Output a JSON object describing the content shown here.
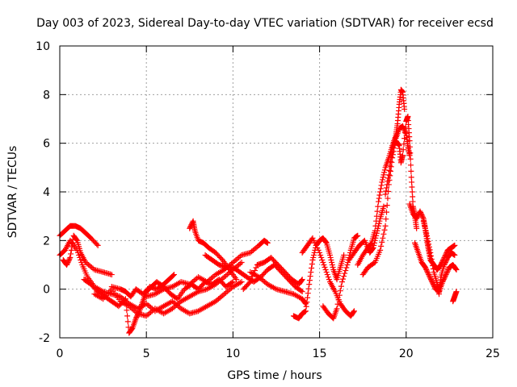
{
  "chart_data": {
    "type": "scatter",
    "title": "Day 003 of 2023, Sidereal Day-to-day VTEC variation (SDTVAR) for receiver ecsd",
    "xlabel": "GPS time / hours",
    "ylabel": "SDTVAR / TECUs",
    "xlim": [
      0,
      25
    ],
    "ylim": [
      -2,
      10
    ],
    "xticks": [
      0,
      5,
      10,
      15,
      20,
      25
    ],
    "yticks": [
      -2,
      0,
      2,
      4,
      6,
      8,
      10
    ],
    "grid": true,
    "marker": "+",
    "series": [
      {
        "name": "SDTVAR",
        "color": "#ff0000",
        "points": [
          [
            0.0,
            1.4
          ],
          [
            0.3,
            1.6
          ],
          [
            0.6,
            2.0
          ],
          [
            1.0,
            1.6
          ],
          [
            1.3,
            1.0
          ],
          [
            1.6,
            0.5
          ],
          [
            2.0,
            0.1
          ],
          [
            2.5,
            -0.1
          ],
          [
            3.0,
            -0.2
          ],
          [
            3.5,
            -0.3
          ],
          [
            4.0,
            -0.6
          ],
          [
            4.5,
            -0.8
          ],
          [
            5.0,
            -0.6
          ],
          [
            5.5,
            -0.9
          ],
          [
            6.0,
            -0.7
          ],
          [
            6.5,
            -0.5
          ],
          [
            7.0,
            -0.8
          ],
          [
            7.5,
            -1.0
          ],
          [
            8.0,
            -0.9
          ],
          [
            8.5,
            -0.7
          ],
          [
            9.0,
            -0.5
          ],
          [
            9.5,
            -0.2
          ],
          [
            10.0,
            0.1
          ],
          [
            10.5,
            0.3
          ],
          [
            0.0,
            2.2
          ],
          [
            0.3,
            2.4
          ],
          [
            0.6,
            2.6
          ],
          [
            0.9,
            2.6
          ],
          [
            1.2,
            2.5
          ],
          [
            1.5,
            2.3
          ],
          [
            1.8,
            2.1
          ],
          [
            2.2,
            1.8
          ],
          [
            0.2,
            1.2
          ],
          [
            0.4,
            1.0
          ],
          [
            0.6,
            1.3
          ],
          [
            0.8,
            2.2
          ],
          [
            1.0,
            2.0
          ],
          [
            1.2,
            1.5
          ],
          [
            1.5,
            1.1
          ],
          [
            2.0,
            0.8
          ],
          [
            2.5,
            0.7
          ],
          [
            3.0,
            0.6
          ],
          [
            3.0,
            0.1
          ],
          [
            3.5,
            0.0
          ],
          [
            3.8,
            -0.1
          ],
          [
            4.1,
            -0.3
          ],
          [
            4.4,
            0.0
          ],
          [
            4.8,
            -0.2
          ],
          [
            5.2,
            0.1
          ],
          [
            5.6,
            0.0
          ],
          [
            6.0,
            0.2
          ],
          [
            6.3,
            0.4
          ],
          [
            6.6,
            0.6
          ],
          [
            1.4,
            0.4
          ],
          [
            1.8,
            0.2
          ],
          [
            2.2,
            -0.1
          ],
          [
            2.6,
            -0.3
          ],
          [
            3.0,
            -0.5
          ],
          [
            3.4,
            -0.7
          ],
          [
            3.8,
            -0.4
          ],
          [
            4.0,
            -1.8
          ],
          [
            4.2,
            -1.6
          ],
          [
            4.4,
            -1.2
          ],
          [
            4.6,
            -0.9
          ],
          [
            4.8,
            -0.5
          ],
          [
            5.0,
            -0.1
          ],
          [
            5.3,
            0.1
          ],
          [
            5.6,
            0.3
          ],
          [
            6.0,
            0.1
          ],
          [
            6.4,
            -0.2
          ],
          [
            6.8,
            -0.4
          ],
          [
            7.2,
            0.0
          ],
          [
            7.6,
            0.2
          ],
          [
            8.0,
            0.0
          ],
          [
            8.4,
            0.3
          ],
          [
            8.8,
            0.2
          ],
          [
            9.2,
            0.4
          ],
          [
            9.6,
            0.1
          ],
          [
            10.0,
            0.3
          ],
          [
            2.0,
            -0.2
          ],
          [
            2.5,
            -0.4
          ],
          [
            3.0,
            0.0
          ],
          [
            3.5,
            -0.5
          ],
          [
            4.0,
            -0.7
          ],
          [
            4.5,
            -1.0
          ],
          [
            5.0,
            -1.1
          ],
          [
            5.5,
            -0.8
          ],
          [
            6.0,
            -1.0
          ],
          [
            6.5,
            -0.8
          ],
          [
            7.0,
            -0.5
          ],
          [
            7.5,
            -0.3
          ],
          [
            8.0,
            -0.1
          ],
          [
            8.5,
            0.0
          ],
          [
            9.0,
            0.2
          ],
          [
            9.5,
            0.5
          ],
          [
            10.0,
            0.8
          ],
          [
            10.5,
            1.1
          ],
          [
            5.0,
            -0.3
          ],
          [
            5.5,
            -0.2
          ],
          [
            6.0,
            0.0
          ],
          [
            6.5,
            0.1
          ],
          [
            7.0,
            0.3
          ],
          [
            7.5,
            0.2
          ],
          [
            8.0,
            0.5
          ],
          [
            8.5,
            0.3
          ],
          [
            9.0,
            0.6
          ],
          [
            9.5,
            0.8
          ],
          [
            10.0,
            1.1
          ],
          [
            10.5,
            1.4
          ],
          [
            11.0,
            1.5
          ],
          [
            11.5,
            1.8
          ],
          [
            11.8,
            2.0
          ],
          [
            12.0,
            1.9
          ],
          [
            7.5,
            2.5
          ],
          [
            7.7,
            2.8
          ],
          [
            7.8,
            2.4
          ],
          [
            8.0,
            2.0
          ],
          [
            8.3,
            1.9
          ],
          [
            8.6,
            1.7
          ],
          [
            9.0,
            1.5
          ],
          [
            9.4,
            1.2
          ],
          [
            9.8,
            0.8
          ],
          [
            10.2,
            0.4
          ],
          [
            8.4,
            1.4
          ],
          [
            8.8,
            1.2
          ],
          [
            9.2,
            1.0
          ],
          [
            9.6,
            0.9
          ],
          [
            10.0,
            0.9
          ],
          [
            10.4,
            0.7
          ],
          [
            10.8,
            0.5
          ],
          [
            11.2,
            0.3
          ],
          [
            11.6,
            0.5
          ],
          [
            12.0,
            0.8
          ],
          [
            12.4,
            1.0
          ],
          [
            12.8,
            0.7
          ],
          [
            13.2,
            0.4
          ],
          [
            13.6,
            0.1
          ],
          [
            14.0,
            -0.1
          ],
          [
            10.6,
            0.0
          ],
          [
            11.0,
            0.3
          ],
          [
            11.4,
            1.0
          ],
          [
            11.8,
            1.1
          ],
          [
            12.2,
            1.3
          ],
          [
            12.6,
            1.0
          ],
          [
            13.0,
            0.7
          ],
          [
            13.4,
            0.4
          ],
          [
            13.8,
            0.2
          ],
          [
            14.0,
            0.4
          ],
          [
            11.0,
            0.7
          ],
          [
            11.5,
            0.5
          ],
          [
            12.0,
            0.2
          ],
          [
            12.5,
            0.0
          ],
          [
            13.0,
            -0.1
          ],
          [
            13.5,
            -0.2
          ],
          [
            14.0,
            -0.4
          ],
          [
            14.2,
            -0.6
          ],
          [
            13.5,
            -1.1
          ],
          [
            13.8,
            -1.2
          ],
          [
            14.0,
            -1.0
          ],
          [
            14.2,
            -0.9
          ],
          [
            14.4,
            0.2
          ],
          [
            14.6,
            1.2
          ],
          [
            14.8,
            1.8
          ],
          [
            15.0,
            2.0
          ],
          [
            15.2,
            2.1
          ],
          [
            15.4,
            1.9
          ],
          [
            15.6,
            1.4
          ],
          [
            15.8,
            0.8
          ],
          [
            16.0,
            0.4
          ],
          [
            16.2,
            0.9
          ],
          [
            16.4,
            1.4
          ],
          [
            14.0,
            1.5
          ],
          [
            14.3,
            1.8
          ],
          [
            14.6,
            2.1
          ],
          [
            15.0,
            1.5
          ],
          [
            15.3,
            0.9
          ],
          [
            15.6,
            0.3
          ],
          [
            15.9,
            -0.1
          ],
          [
            16.2,
            -0.6
          ],
          [
            16.5,
            -0.9
          ],
          [
            16.8,
            -1.1
          ],
          [
            17.0,
            -0.9
          ],
          [
            15.2,
            -0.7
          ],
          [
            15.5,
            -1.0
          ],
          [
            15.8,
            -1.2
          ],
          [
            16.0,
            -0.8
          ],
          [
            16.3,
            0.3
          ],
          [
            16.6,
            1.0
          ],
          [
            16.8,
            1.6
          ],
          [
            17.0,
            2.1
          ],
          [
            17.2,
            2.2
          ],
          [
            16.7,
            1.2
          ],
          [
            17.0,
            1.5
          ],
          [
            17.3,
            1.8
          ],
          [
            17.6,
            2.0
          ],
          [
            17.9,
            1.5
          ],
          [
            18.1,
            1.7
          ],
          [
            18.3,
            2.3
          ],
          [
            18.5,
            2.9
          ],
          [
            18.7,
            3.4
          ],
          [
            17.2,
            1.0
          ],
          [
            17.5,
            1.4
          ],
          [
            17.8,
            1.7
          ],
          [
            18.0,
            1.9
          ],
          [
            18.2,
            2.4
          ],
          [
            18.4,
            3.6
          ],
          [
            18.6,
            4.4
          ],
          [
            18.8,
            5.0
          ],
          [
            19.0,
            5.4
          ],
          [
            19.2,
            5.9
          ],
          [
            19.4,
            6.3
          ],
          [
            19.5,
            6.8
          ],
          [
            19.6,
            7.6
          ],
          [
            19.7,
            8.2
          ],
          [
            19.8,
            8.1
          ],
          [
            19.9,
            7.4
          ],
          [
            17.5,
            0.6
          ],
          [
            17.8,
            0.9
          ],
          [
            18.2,
            1.1
          ],
          [
            18.5,
            1.6
          ],
          [
            18.8,
            2.6
          ],
          [
            19.0,
            4.3
          ],
          [
            19.2,
            5.4
          ],
          [
            19.4,
            6.2
          ],
          [
            19.6,
            6.6
          ],
          [
            19.8,
            6.7
          ],
          [
            20.0,
            6.4
          ],
          [
            20.1,
            5.9
          ],
          [
            20.2,
            5.5
          ],
          [
            18.8,
            3.9
          ],
          [
            19.0,
            4.7
          ],
          [
            19.2,
            5.8
          ],
          [
            19.4,
            6.1
          ],
          [
            19.6,
            5.9
          ],
          [
            19.7,
            5.2
          ],
          [
            19.8,
            5.5
          ],
          [
            20.0,
            6.9
          ],
          [
            20.1,
            7.1
          ],
          [
            20.2,
            6.1
          ],
          [
            20.3,
            4.6
          ],
          [
            20.4,
            3.4
          ],
          [
            20.5,
            3.0
          ],
          [
            20.6,
            2.5
          ],
          [
            20.2,
            3.5
          ],
          [
            20.4,
            3.1
          ],
          [
            20.6,
            2.9
          ],
          [
            20.8,
            3.2
          ],
          [
            21.0,
            2.9
          ],
          [
            21.1,
            2.5
          ],
          [
            21.2,
            2.0
          ],
          [
            21.3,
            1.6
          ],
          [
            21.4,
            1.2
          ],
          [
            21.6,
            1.0
          ],
          [
            21.8,
            0.8
          ],
          [
            22.0,
            1.0
          ],
          [
            22.2,
            1.3
          ],
          [
            22.4,
            1.6
          ],
          [
            22.6,
            1.7
          ],
          [
            22.8,
            1.8
          ],
          [
            20.5,
            1.9
          ],
          [
            20.7,
            1.5
          ],
          [
            20.9,
            1.1
          ],
          [
            21.1,
            0.9
          ],
          [
            21.3,
            0.6
          ],
          [
            21.5,
            0.3
          ],
          [
            21.7,
            0.0
          ],
          [
            21.9,
            -0.1
          ],
          [
            22.1,
            0.3
          ],
          [
            22.3,
            0.6
          ],
          [
            22.5,
            0.9
          ],
          [
            22.7,
            1.0
          ],
          [
            22.9,
            0.8
          ],
          [
            21.0,
            2.8
          ],
          [
            21.2,
            2.2
          ],
          [
            21.4,
            1.5
          ],
          [
            21.6,
            0.7
          ],
          [
            21.8,
            0.2
          ],
          [
            21.9,
            -0.2
          ],
          [
            22.0,
            0.5
          ],
          [
            22.2,
            1.0
          ],
          [
            22.4,
            1.3
          ],
          [
            22.6,
            1.5
          ],
          [
            22.8,
            1.4
          ],
          [
            22.7,
            -0.5
          ],
          [
            22.8,
            -0.3
          ],
          [
            22.9,
            -0.1
          ]
        ]
      }
    ]
  }
}
